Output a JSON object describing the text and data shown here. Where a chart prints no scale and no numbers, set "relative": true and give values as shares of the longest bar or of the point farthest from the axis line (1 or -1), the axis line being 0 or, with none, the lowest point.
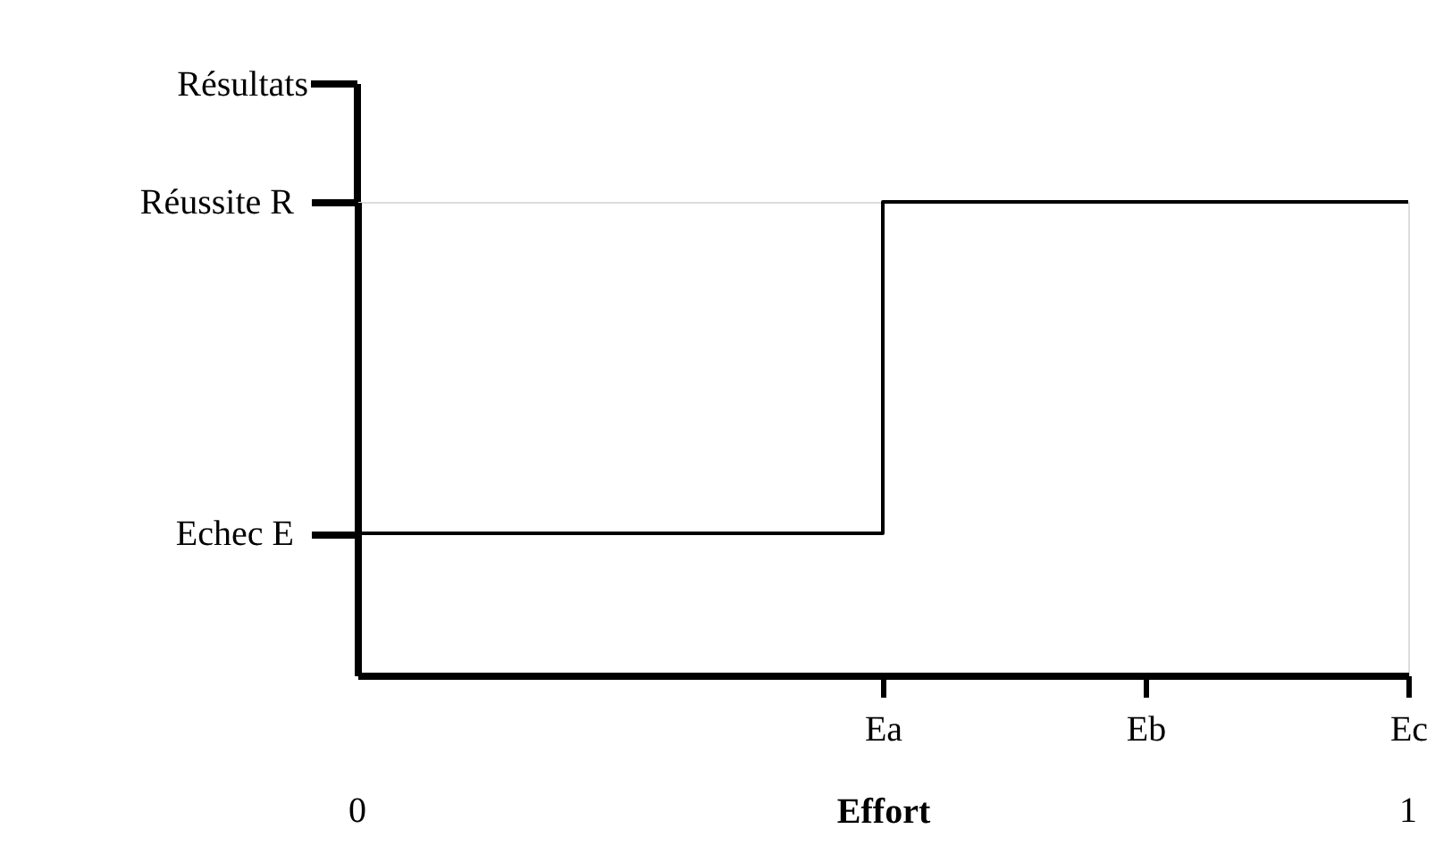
{
  "chart_data": {
    "type": "step",
    "relative": true,
    "xlabel": "Effort",
    "ylabel": "Résultats",
    "categories": [
      null,
      null,
      "Ea",
      "Eb",
      "Ec"
    ],
    "series": [
      {
        "color": "#000000",
        "values": [
          0.3,
          0.3,
          1,
          1,
          1
        ]
      }
    ],
    "annotations": [
      "Réussite R",
      "Echec E",
      "0",
      "1"
    ],
    "grid": false,
    "marker": "none",
    "line_style": "solid"
  }
}
